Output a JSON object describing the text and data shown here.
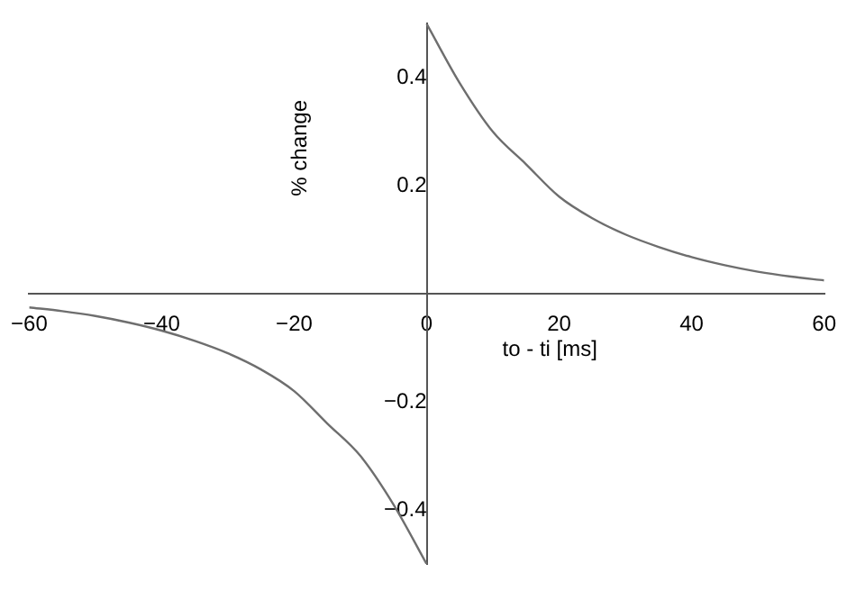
{
  "chart_data": {
    "type": "line",
    "xlabel": "to - ti [ms]",
    "ylabel": "% change",
    "xlim": [
      -60,
      60
    ],
    "ylim": [
      -0.5,
      0.5
    ],
    "xticks": [
      {
        "value": -60,
        "label": "−60"
      },
      {
        "value": -40,
        "label": "−40"
      },
      {
        "value": -20,
        "label": "−20"
      },
      0,
      20,
      40,
      60
    ],
    "yticks": [
      {
        "value": -0.4,
        "label": "−0.4"
      },
      {
        "value": -0.2,
        "label": "−0.2"
      },
      0.2,
      0.4
    ],
    "grid": false,
    "legend": false,
    "marker": "none",
    "line_style": "solid",
    "series": [
      {
        "color": "#6e6e6e",
        "x": [
          0,
          5,
          10,
          15,
          20,
          25,
          30,
          35,
          40,
          45,
          50,
          55,
          60
        ],
        "values": [
          0.5,
          0.39,
          0.3,
          0.24,
          0.18,
          0.14,
          0.11,
          0.087,
          0.068,
          0.053,
          0.041,
          0.032,
          0.025
        ]
      },
      {
        "color": "#6e6e6e",
        "x": [
          -60,
          -55,
          -50,
          -45,
          -40,
          -35,
          -30,
          -25,
          -20,
          -15,
          -10,
          -5,
          0
        ],
        "values": [
          -0.025,
          -0.032,
          -0.041,
          -0.053,
          -0.068,
          -0.087,
          -0.11,
          -0.14,
          -0.18,
          -0.24,
          -0.3,
          -0.39,
          -0.5
        ]
      }
    ]
  }
}
